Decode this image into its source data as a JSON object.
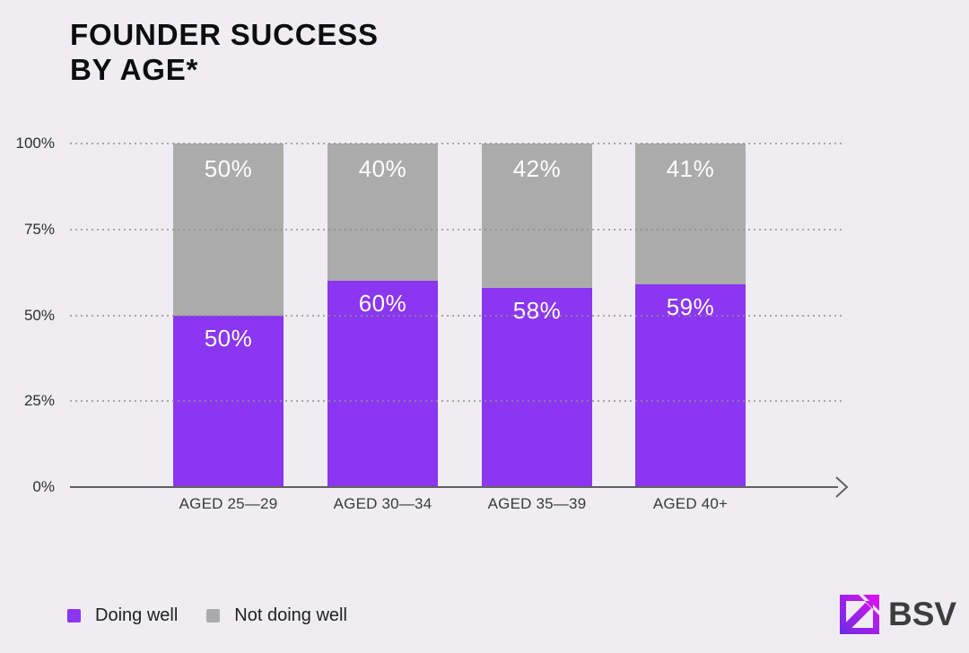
{
  "title": {
    "line1": "FOUNDER SUCCESS",
    "line2": "BY AGE*"
  },
  "chart_data": {
    "type": "bar",
    "stacked": true,
    "title": "FOUNDER SUCCESS BY AGE*",
    "categories": [
      "AGED 25—29",
      "AGED 30—34",
      "AGED 35—39",
      "AGED 40+"
    ],
    "series": [
      {
        "name": "Doing well",
        "color": "#8B36F0",
        "values": [
          50,
          60,
          58,
          59
        ]
      },
      {
        "name": "Not doing well",
        "color": "#ABABAB",
        "values": [
          50,
          40,
          42,
          41
        ]
      }
    ],
    "segment_labels": {
      "doing_well": [
        "50%",
        "60%",
        "58%",
        "59%"
      ],
      "not_doing_well": [
        "50%",
        "40%",
        "42%",
        "41%"
      ]
    },
    "yticks": [
      "100%",
      "75%",
      "50%",
      "25%",
      "0%"
    ],
    "ylim": [
      0,
      100
    ],
    "grid": "horizontal-dotted",
    "legend_position": "bottom-left",
    "bar_label_position": "inside-top-of-each-segment"
  },
  "legend": {
    "items": [
      {
        "label": "Doing well",
        "color": "#8B36F0"
      },
      {
        "label": "Not doing well",
        "color": "#ABABAB"
      }
    ]
  },
  "logo": {
    "text": "BSV"
  },
  "colors": {
    "background": "#EFEDF2",
    "doing_well": "#8B36F0",
    "not_doing_well": "#ABABAB",
    "bar_label_text": "#FFFFFF",
    "title_text": "#0D0D0D",
    "axis_text": "#3A3A3A",
    "axis_line": "#616161",
    "gridline": "#8F8F8F",
    "logo_text": "#3D3D3D",
    "logo_gradient_start": "#6D2BE3",
    "logo_gradient_mid": "#A31FE9",
    "logo_gradient_end": "#E312F0"
  }
}
